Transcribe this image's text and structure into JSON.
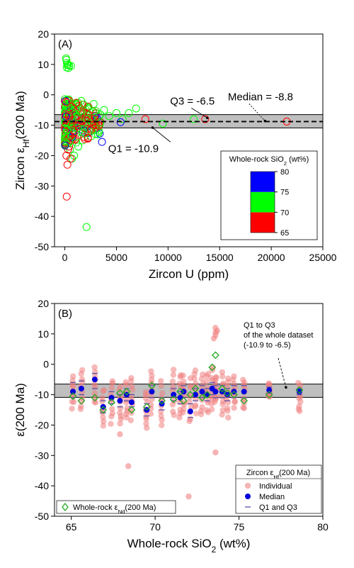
{
  "chart_data": [
    {
      "type": "scatter",
      "panel_label": "(A)",
      "xlabel": "Zircon U (ppm)",
      "ylabel_main": "Zircon ε",
      "ylabel_sub": "Hf",
      "ylabel_tail": "(200 Ma)",
      "xlim": [
        -1000,
        25000
      ],
      "ylim": [
        -50,
        20
      ],
      "xticks": [
        0,
        5000,
        10000,
        15000,
        20000,
        25000
      ],
      "yticks": [
        -50,
        -40,
        -30,
        -20,
        -10,
        0,
        10,
        20
      ],
      "grid": false,
      "iqr_band": [
        -10.9,
        -6.5
      ],
      "median": -8.8,
      "annotations": [
        {
          "text": "Q3 = -6.5",
          "x": 10200,
          "y": -3.2,
          "target": [
            13800,
            -7.6
          ]
        },
        {
          "text": "Median = -8.8",
          "x": 15800,
          "y": -1.8,
          "target": [
            19400,
            -8.6
          ]
        },
        {
          "text": "Q1 = -10.9",
          "x": 4200,
          "y": -18.8,
          "target": [
            8500,
            -10.8
          ]
        }
      ],
      "colorbar": {
        "title_main": "Whole-rock SiO",
        "title_sub": "2",
        "title_tail": " (wt%)",
        "ticks": [
          65,
          70,
          75,
          80
        ],
        "bins": [
          {
            "from": 65,
            "to": 70,
            "color": "#ff0000"
          },
          {
            "from": 70,
            "to": 75,
            "color": "#00ff00"
          },
          {
            "from": 75,
            "to": 80,
            "color": "#0000ff"
          }
        ]
      },
      "points": [
        [
          150,
          11.5,
          73.5
        ],
        [
          200,
          10.5,
          73.5
        ],
        [
          250,
          9.8,
          73.5
        ],
        [
          180,
          9.0,
          73.5
        ],
        [
          300,
          10.0,
          73.5
        ],
        [
          420,
          9.6,
          73.5
        ],
        [
          350,
          8.8,
          73.5
        ],
        [
          600,
          9.5,
          73.5
        ],
        [
          120,
          12.0,
          73.5
        ],
        [
          250,
          -5,
          70.5
        ],
        [
          400,
          -8,
          71
        ],
        [
          500,
          -10,
          72
        ],
        [
          600,
          -3,
          70.2
        ],
        [
          800,
          -12,
          71.5
        ],
        [
          1000,
          -7,
          72.5
        ],
        [
          1200,
          -14,
          73
        ],
        [
          1500,
          -9,
          71
        ],
        [
          1800,
          -5,
          72
        ],
        [
          2000,
          -11,
          73.2
        ],
        [
          2300,
          -4,
          71.5
        ],
        [
          2600,
          -8,
          72.8
        ],
        [
          3000,
          -6,
          70.5
        ],
        [
          3400,
          -9,
          71.2
        ],
        [
          3800,
          -5,
          72.2
        ],
        [
          4300,
          -7,
          73.5
        ],
        [
          5000,
          -6,
          72
        ],
        [
          5600,
          -8,
          71.8
        ],
        [
          6200,
          -6,
          72.5
        ],
        [
          6900,
          -4.5,
          73
        ],
        [
          9500,
          -9.5,
          71
        ],
        [
          12500,
          -8,
          72
        ],
        [
          300,
          -16,
          71
        ],
        [
          500,
          -18,
          70.5
        ],
        [
          900,
          -20,
          71.5
        ],
        [
          1300,
          -17,
          72
        ],
        [
          1700,
          -15,
          71.8
        ],
        [
          2100,
          -43.5,
          72
        ],
        [
          2500,
          -12,
          70.8
        ],
        [
          3200,
          -13,
          71.5
        ],
        [
          700,
          -21,
          71.2
        ],
        [
          1100,
          -3,
          73
        ],
        [
          1600,
          -2,
          72.5
        ],
        [
          2800,
          -3,
          71
        ],
        [
          450,
          -6,
          70.1
        ],
        [
          850,
          -9,
          70.8
        ],
        [
          200,
          -9,
          67
        ],
        [
          300,
          -12,
          66
        ],
        [
          400,
          -6,
          68
        ],
        [
          500,
          -15,
          67.5
        ],
        [
          150,
          -20,
          66.5
        ],
        [
          250,
          -23,
          68.5
        ],
        [
          350,
          -3,
          65.5
        ],
        [
          600,
          -11,
          69
        ],
        [
          700,
          -8,
          66.2
        ],
        [
          800,
          -13,
          68.2
        ],
        [
          1000,
          -5,
          67.2
        ],
        [
          180,
          -33.5,
          68.4
        ],
        [
          320,
          -18,
          66.8
        ],
        [
          450,
          -2,
          65.8
        ],
        [
          900,
          -10,
          69.5
        ],
        [
          1200,
          -7,
          68.8
        ],
        [
          1500,
          -9,
          67.8
        ],
        [
          2000,
          -8,
          69.2
        ],
        [
          2500,
          -11,
          68.6
        ],
        [
          3000,
          -9,
          69.4
        ],
        [
          7800,
          -8,
          68
        ],
        [
          13600,
          -8,
          68.5
        ],
        [
          21500,
          -8.8,
          68
        ],
        [
          100,
          -10,
          66
        ],
        [
          420,
          -17,
          67.4
        ],
        [
          550,
          -21,
          68.1
        ],
        [
          650,
          -4,
          66.6
        ],
        [
          260,
          -7,
          69.7
        ],
        [
          380,
          -14,
          69.1
        ],
        [
          2200,
          -10,
          76
        ],
        [
          3600,
          -15.5,
          77
        ],
        [
          5400,
          -9,
          78
        ],
        [
          1600,
          -8,
          76.5
        ],
        [
          900,
          -9.5,
          75.5
        ],
        [
          500,
          -7,
          78.5
        ]
      ]
    },
    {
      "type": "scatter",
      "panel_label": "(B)",
      "xlabel_main": "Whole-rock SiO",
      "xlabel_sub": "2",
      "xlabel_tail": " (wt%)",
      "ylabel": "ε(200 Ma)",
      "xlim": [
        64,
        80
      ],
      "ylim": [
        -50,
        20
      ],
      "xticks": [
        65,
        70,
        75,
        80
      ],
      "yticks": [
        -50,
        -40,
        -30,
        -20,
        -10,
        0,
        10,
        20
      ],
      "grid": false,
      "iqr_band": [
        -10.9,
        -6.5
      ],
      "median": -8.8,
      "annotation_lines": [
        "Q1 to Q3",
        "of the whole dataset",
        "(-10.9 to -6.5)"
      ],
      "annotation_target": [
        77.8,
        -7.6
      ],
      "legend_nd_main": "Whole-rock ε",
      "legend_nd_sub": "Nd",
      "legend_nd_tail": "(200 Ma)",
      "legend_hf_title_main": "Zircon ε",
      "legend_hf_title_sub": "Hf",
      "legend_hf_title_tail": "(200 Ma)",
      "legend_hf_items": [
        "Individual",
        "Median",
        "Q1 and Q3"
      ],
      "samples": [
        {
          "x": 65.1,
          "lo": -14,
          "hi": -4,
          "median": -9,
          "q1": -11,
          "q3": -6,
          "nd": -10.5
        },
        {
          "x": 65.6,
          "lo": -15,
          "hi": -2,
          "median": -8,
          "q1": -10,
          "q3": -5.5,
          "nd": -12
        },
        {
          "x": 66.4,
          "lo": -13,
          "hi": -1,
          "median": -5,
          "q1": -8,
          "q3": -3,
          "nd": -11
        },
        {
          "x": 66.9,
          "lo": -20.5,
          "hi": -8,
          "median": -14,
          "q1": -16,
          "q3": -12,
          "nd": -15
        },
        {
          "x": 67.4,
          "lo": -19,
          "hi": -5,
          "median": -11,
          "q1": -13,
          "q3": -9,
          "nd": -12.5
        },
        {
          "x": 67.9,
          "lo": -20,
          "hi": -7,
          "median": -12,
          "q1": -14,
          "q3": -10,
          "nd": -9.5
        },
        {
          "x": 68.3,
          "lo": -18,
          "hi": -6,
          "median": -10,
          "q1": -12,
          "q3": -8,
          "nd": -9
        },
        {
          "x": 68.6,
          "lo": -18,
          "hi": -4,
          "median": -12.5,
          "q1": -14,
          "q3": -10,
          "nd": -15
        },
        {
          "x": 69.5,
          "lo": -21,
          "hi": -9,
          "median": -15,
          "q1": -17,
          "q3": -13,
          "nd": -14
        },
        {
          "x": 69.8,
          "lo": -16,
          "hi": -2,
          "median": -9,
          "q1": -11,
          "q3": -7,
          "nd": -7
        },
        {
          "x": 70.4,
          "lo": -20,
          "hi": -6,
          "median": -13,
          "q1": -15,
          "q3": -11,
          "nd": -12
        },
        {
          "x": 71.1,
          "lo": -17,
          "hi": -2,
          "median": -10,
          "q1": -12,
          "q3": -8,
          "nd": -11.5
        },
        {
          "x": 71.5,
          "lo": -18,
          "hi": -3,
          "median": -11,
          "q1": -13,
          "q3": -9,
          "nd": -9
        },
        {
          "x": 71.7,
          "lo": -16,
          "hi": -4,
          "median": -9,
          "q1": -11,
          "q3": -7,
          "nd": -12
        },
        {
          "x": 72.1,
          "lo": -19,
          "hi": -5,
          "median": -15.5,
          "q1": -17.5,
          "q3": -13,
          "nd": -10
        },
        {
          "x": 72.4,
          "lo": -16,
          "hi": -2,
          "median": -10,
          "q1": -12,
          "q3": -8,
          "nd": -8
        },
        {
          "x": 72.8,
          "lo": -17,
          "hi": -3,
          "median": -9,
          "q1": -11,
          "q3": -7,
          "nd": -11
        },
        {
          "x": 73.1,
          "lo": -16,
          "hi": -3,
          "median": -10,
          "q1": -12,
          "q3": -8,
          "nd": -10
        },
        {
          "x": 73.4,
          "lo": -15,
          "hi": -1,
          "median": -8,
          "q1": -10,
          "q3": -6,
          "nd": -1
        },
        {
          "x": 73.6,
          "lo": -13,
          "hi": -4,
          "median": -9,
          "q1": -11,
          "q3": -7,
          "nd": 3
        },
        {
          "x": 74.0,
          "lo": -16,
          "hi": -3,
          "median": -9,
          "q1": -11,
          "q3": -7,
          "nd": -8
        },
        {
          "x": 74.3,
          "lo": -17,
          "hi": -5,
          "median": -10,
          "q1": -12,
          "q3": -8,
          "nd": -9.5
        },
        {
          "x": 74.7,
          "lo": -14,
          "hi": -4,
          "median": -9,
          "q1": -11,
          "q3": -7,
          "nd": -10
        },
        {
          "x": 75.3,
          "lo": -15,
          "hi": -5,
          "median": -9,
          "q1": -11,
          "q3": -7,
          "nd": -12
        },
        {
          "x": 76.8,
          "lo": -11,
          "hi": -6,
          "median": -8.5,
          "q1": -9.5,
          "q3": -7.5,
          "nd": -10
        },
        {
          "x": 78.6,
          "lo": -15.5,
          "hi": -6,
          "median": -9,
          "q1": -10,
          "q3": -8,
          "nd": -8.5
        }
      ],
      "outliers": [
        [
          73.6,
          12
        ],
        [
          73.6,
          10.5
        ],
        [
          73.6,
          9.5
        ],
        [
          73.7,
          11
        ],
        [
          73.5,
          8.5
        ],
        [
          73.6,
          -29
        ],
        [
          72.0,
          -43.5
        ],
        [
          68.4,
          -33.5
        ],
        [
          67.9,
          -23
        ]
      ]
    }
  ]
}
